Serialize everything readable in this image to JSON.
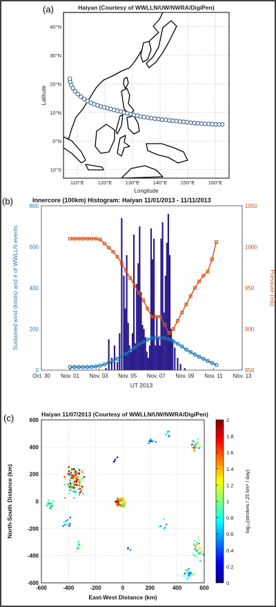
{
  "colors": {
    "panel_border": "#000000",
    "track_marker": "#4a6f8f",
    "hist_bar": "#2a1d8c",
    "wind": "#1f77b4",
    "pressure": "#d9541a",
    "axis_left": "#1f77b4",
    "axis_right": "#c0501a"
  },
  "chart_data": [
    {
      "panel_label": "(a)",
      "type": "scatter",
      "title": "Haiyan (Courtesy of WWLLN/UW/NWRA/DigiPen)",
      "xlabel": "Longitude",
      "ylabel": "Latitude",
      "xlim": [
        105,
        165
      ],
      "ylim": [
        -13,
        45
      ],
      "x_ticks": [
        110,
        120,
        130,
        140,
        150,
        160
      ],
      "x_tick_labels": [
        "110°E",
        "120°E",
        "130°E",
        "140°E",
        "150°E",
        "160°E"
      ],
      "y_ticks": [
        -10,
        0,
        10,
        20,
        30,
        40
      ],
      "y_tick_labels": [
        "10°S",
        "0°N",
        "10°N",
        "20°N",
        "30°N",
        "40°N"
      ],
      "grid": true,
      "track": {
        "lon": [
          162.5,
          161.3,
          160.1,
          158.9,
          157.6,
          156.3,
          155.0,
          153.7,
          152.4,
          151.1,
          149.8,
          148.5,
          147.2,
          145.9,
          144.6,
          143.3,
          142.0,
          140.7,
          139.4,
          138.1,
          136.8,
          135.5,
          134.2,
          132.9,
          131.7,
          130.5,
          129.3,
          128.1,
          126.9,
          125.7,
          124.5,
          123.3,
          122.1,
          120.9,
          119.7,
          118.5,
          117.3,
          116.1,
          114.9,
          113.7,
          112.5,
          111.3,
          110.2,
          109.2,
          108.4,
          107.8,
          107.4,
          107.3
        ],
        "lat": [
          5.8,
          5.8,
          5.8,
          5.9,
          6.0,
          6.0,
          6.1,
          6.2,
          6.3,
          6.4,
          6.6,
          6.7,
          6.8,
          7.0,
          7.1,
          7.2,
          7.4,
          7.5,
          7.7,
          7.8,
          8.0,
          8.2,
          8.4,
          8.6,
          8.9,
          9.1,
          9.4,
          9.7,
          10.0,
          10.3,
          10.6,
          10.9,
          11.2,
          11.5,
          11.8,
          12.1,
          12.5,
          12.9,
          13.4,
          14.0,
          14.7,
          15.5,
          16.4,
          17.4,
          18.5,
          19.6,
          20.7,
          21.8
        ]
      }
    },
    {
      "panel_label": "(b)",
      "type": "bar",
      "title": "Innercore (100km) Histogram: Haiyan 11/01/2013 - 11/11/2013",
      "xlabel": "UT 2013",
      "ylabel": "Sustained wind (knots) and # of WWLLN events",
      "y2label": "Pressure (mb)",
      "x_ticks": [
        "Oct. 30",
        "Nov. 01",
        "Nov. 03",
        "Nov. 05",
        "Nov. 07",
        "Nov. 09",
        "Nov. 11",
        "Nov. 13"
      ],
      "x_day_range": [
        0,
        14
      ],
      "ylim": [
        0,
        800
      ],
      "y_ticks": [
        0,
        200,
        400,
        600,
        800
      ],
      "y2lim": [
        850,
        1050
      ],
      "y2_ticks": [
        850,
        900,
        950,
        1000,
        1050
      ],
      "histogram_day": [
        4.5,
        4.7,
        4.9,
        5.1,
        5.3,
        5.45,
        5.6,
        5.75,
        5.85,
        5.95,
        6.05,
        6.15,
        6.25,
        6.35,
        6.45,
        6.55,
        6.65,
        6.75,
        6.85,
        6.95,
        7.05,
        7.15,
        7.25,
        7.35,
        7.45,
        7.55,
        7.65,
        7.75,
        7.85,
        7.95,
        8.05,
        8.15,
        8.25,
        8.35,
        8.45,
        8.55,
        8.65,
        8.75,
        8.85,
        8.95,
        9.05,
        9.15,
        9.3,
        9.5,
        9.7,
        10.0
      ],
      "histogram_events": [
        10,
        150,
        60,
        120,
        40,
        180,
        740,
        460,
        300,
        560,
        230,
        120,
        90,
        180,
        660,
        130,
        420,
        520,
        700,
        380,
        220,
        200,
        160,
        90,
        60,
        120,
        690,
        540,
        640,
        120,
        260,
        160,
        120,
        640,
        720,
        280,
        460,
        620,
        760,
        560,
        200,
        150,
        110,
        60,
        30,
        10
      ],
      "wind": {
        "name": "Sustained wind",
        "day": [
          2.0,
          2.3,
          2.6,
          2.9,
          3.2,
          3.5,
          3.8,
          4.1,
          4.4,
          4.7,
          5.0,
          5.3,
          5.6,
          5.9,
          6.2,
          6.5,
          6.8,
          7.1,
          7.4,
          7.7,
          8.0,
          8.3,
          8.6,
          8.9,
          9.2,
          9.5,
          9.8,
          10.1,
          10.4,
          10.7,
          11.0,
          11.3,
          11.6,
          11.9,
          12.2
        ],
        "values": [
          15,
          15,
          15,
          15,
          15,
          16,
          18,
          22,
          28,
          36,
          45,
          55,
          67,
          80,
          95,
          110,
          125,
          138,
          148,
          155,
          158,
          158,
          156,
          150,
          140,
          128,
          115,
          100,
          88,
          76,
          65,
          55,
          45,
          35,
          25
        ]
      },
      "pressure": {
        "name": "Pressure",
        "day": [
          2.0,
          2.3,
          2.6,
          2.9,
          3.2,
          3.5,
          3.8,
          4.1,
          4.4,
          4.7,
          5.0,
          5.3,
          5.6,
          5.9,
          6.2,
          6.5,
          6.8,
          7.1,
          7.4,
          7.7,
          8.0,
          8.3,
          8.6,
          8.9,
          9.2,
          9.5,
          9.8,
          10.1,
          10.4,
          10.7,
          11.0,
          11.3,
          11.6,
          11.9,
          12.2
        ],
        "values": [
          1010,
          1010,
          1010,
          1010,
          1010,
          1010,
          1010,
          1009,
          1004,
          999,
          994,
          988,
          980,
          971,
          962,
          953,
          944,
          935,
          925,
          915,
          915,
          915,
          905,
          895,
          900,
          910,
          920,
          930,
          940,
          950,
          958,
          965,
          970,
          985,
          1006
        ]
      }
    },
    {
      "panel_label": "(c)",
      "type": "heatmap",
      "title": "Haiyan 11/07/2013 (Courtesy of WWLLN/UW/NWRA/DigiPen)",
      "xlabel": "East-West Distance (km)",
      "ylabel": "North-South Distance (km)",
      "xlim": [
        -600,
        600
      ],
      "ylim": [
        -600,
        600
      ],
      "x_ticks": [
        -600,
        -400,
        -200,
        0,
        200,
        400,
        600
      ],
      "y_ticks": [
        -600,
        -400,
        -200,
        0,
        200,
        400,
        600
      ],
      "grid": true,
      "colorbar_label": "log₁₀(strokes / 25 km² / day)",
      "colorbar_ticks": [
        "0",
        "0.2",
        "0.4",
        "0.6",
        "0.8",
        "1",
        "1.2",
        "1.4",
        "1.6",
        "1.8",
        "2"
      ],
      "clim": [
        0,
        2
      ],
      "clusters": [
        {
          "x": -360,
          "y": 150,
          "sx": 50,
          "sy": 80,
          "n": 130,
          "level": 0.7
        },
        {
          "x": -545,
          "y": -20,
          "sx": 25,
          "sy": 25,
          "n": 25,
          "level": 0.5
        },
        {
          "x": -420,
          "y": -150,
          "sx": 30,
          "sy": 25,
          "n": 12,
          "level": 0.3
        },
        {
          "x": -330,
          "y": -330,
          "sx": 20,
          "sy": 40,
          "n": 14,
          "level": 0.4
        },
        {
          "x": 530,
          "y": 420,
          "sx": 25,
          "sy": 35,
          "n": 25,
          "level": 0.6
        },
        {
          "x": 540,
          "y": -350,
          "sx": 30,
          "sy": 60,
          "n": 35,
          "level": 0.5
        },
        {
          "x": 480,
          "y": -530,
          "sx": 35,
          "sy": 30,
          "n": 25,
          "level": 0.4
        },
        {
          "x": 200,
          "y": 440,
          "sx": 30,
          "sy": 30,
          "n": 10,
          "level": 0.3
        },
        {
          "x": 330,
          "y": 500,
          "sx": 20,
          "sy": 20,
          "n": 6,
          "level": 0.3
        },
        {
          "x": 300,
          "y": -160,
          "sx": 30,
          "sy": 30,
          "n": 6,
          "level": 0.3
        },
        {
          "x": -60,
          "y": 320,
          "sx": 20,
          "sy": 20,
          "n": 4,
          "level": 0.2
        },
        {
          "x": 30,
          "y": -330,
          "sx": 20,
          "sy": 20,
          "n": 3,
          "level": 0.2
        }
      ],
      "eye": {
        "x": -20,
        "y": -5,
        "radius_km": 28
      }
    }
  ]
}
